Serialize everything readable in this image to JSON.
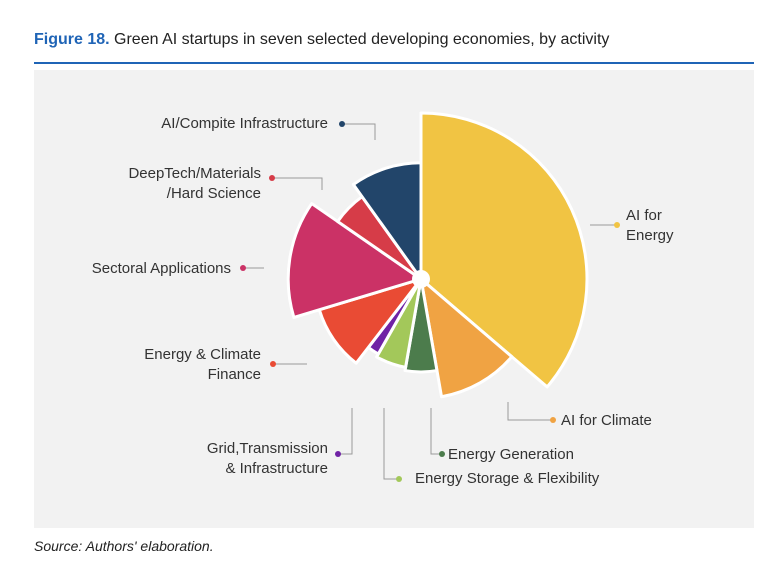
{
  "figure": {
    "number": "Figure 18.",
    "title": "Green AI startups in seven selected developing economies, by activity"
  },
  "source": "Source: Authors' elaboration.",
  "chart_data": {
    "type": "pie",
    "slices": [
      {
        "label": "AI for Energy",
        "value": 33,
        "radius": 1.0,
        "color": "#f1c443"
      },
      {
        "label": "AI for Climate",
        "value": 10,
        "radius": 0.72,
        "color": "#f0a343"
      },
      {
        "label": "Energy Generation",
        "value": 5,
        "radius": 0.56,
        "color": "#4c7c4c"
      },
      {
        "label": "Energy Storage & Flexibility",
        "value": 5,
        "radius": 0.54,
        "color": "#a3c85a"
      },
      {
        "label": "Grid,Transmission & Infrastructure",
        "value": 2,
        "radius": 0.52,
        "color": "#7023a5"
      },
      {
        "label": "Energy & Climate Finance",
        "value": 9,
        "radius": 0.64,
        "color": "#e94b34"
      },
      {
        "label": "Sectoral Applications",
        "value": 13,
        "radius": 0.8,
        "color": "#cb3266"
      },
      {
        "label": "DeepTech/Materials /Hard Science",
        "value": 5,
        "radius": 0.61,
        "color": "#d63c48"
      },
      {
        "label": "AI/Compite Infrastructure",
        "value": 9,
        "radius": 0.7,
        "color": "#22456a"
      }
    ],
    "legend": "none",
    "labels": [
      {
        "lines": [
          "AI for",
          "Energy"
        ]
      },
      {
        "lines": [
          "AI for Climate"
        ]
      },
      {
        "lines": [
          "Energy Generation"
        ]
      },
      {
        "lines": [
          "Energy Storage & Flexibility"
        ]
      },
      {
        "lines": [
          "Grid,Transmission",
          "& Infrastructure"
        ]
      },
      {
        "lines": [
          "Energy & Climate",
          "Finance"
        ]
      },
      {
        "lines": [
          "Sectoral Applications"
        ]
      },
      {
        "lines": [
          "DeepTech/Materials",
          "/Hard Science"
        ]
      },
      {
        "lines": [
          "AI/Compite Infrastructure"
        ]
      }
    ]
  }
}
